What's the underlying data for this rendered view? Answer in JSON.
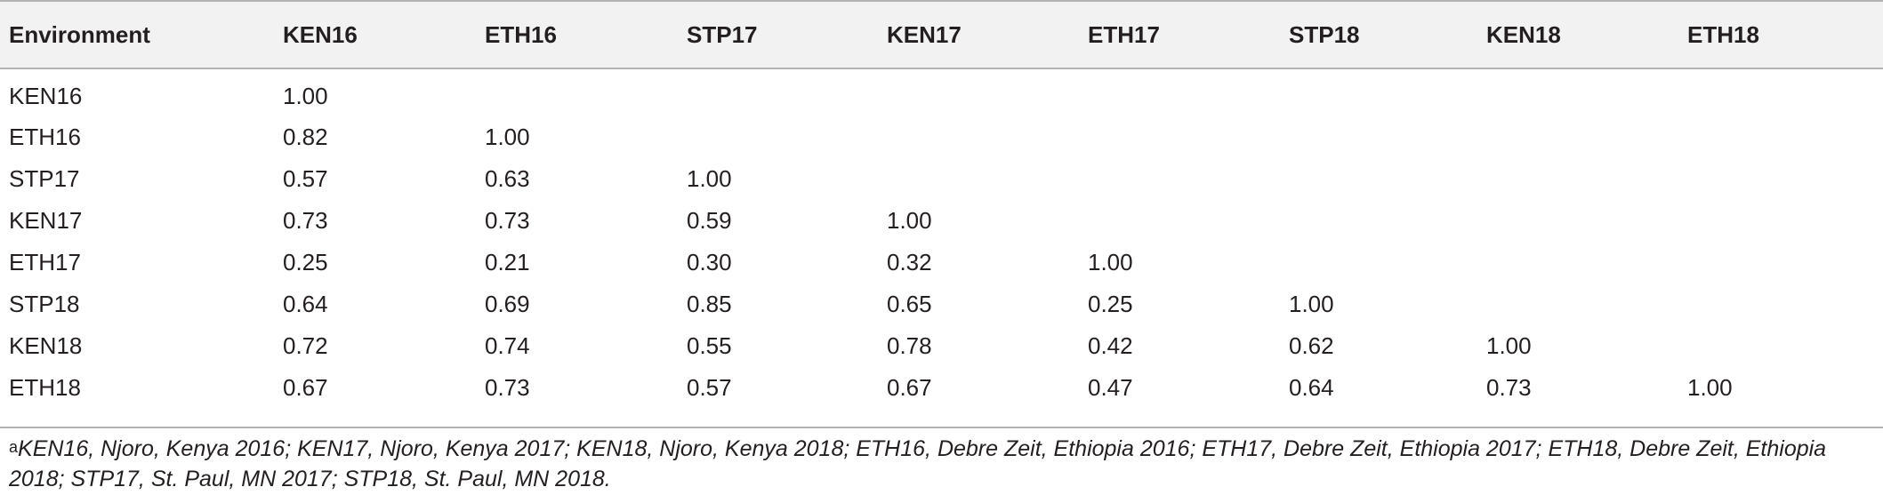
{
  "table": {
    "headers": [
      "Environment",
      "KEN16",
      "ETH16",
      "STP17",
      "KEN17",
      "ETH17",
      "STP18",
      "KEN18",
      "ETH18"
    ],
    "rows": [
      [
        "KEN16",
        "1.00",
        "",
        "",
        "",
        "",
        "",
        "",
        ""
      ],
      [
        "ETH16",
        "0.82",
        "1.00",
        "",
        "",
        "",
        "",
        "",
        ""
      ],
      [
        "STP17",
        "0.57",
        "0.63",
        "1.00",
        "",
        "",
        "",
        "",
        ""
      ],
      [
        "KEN17",
        "0.73",
        "0.73",
        "0.59",
        "1.00",
        "",
        "",
        "",
        ""
      ],
      [
        "ETH17",
        "0.25",
        "0.21",
        "0.30",
        "0.32",
        "1.00",
        "",
        "",
        ""
      ],
      [
        "STP18",
        "0.64",
        "0.69",
        "0.85",
        "0.65",
        "0.25",
        "1.00",
        "",
        ""
      ],
      [
        "KEN18",
        "0.72",
        "0.74",
        "0.55",
        "0.78",
        "0.42",
        "0.62",
        "1.00",
        ""
      ],
      [
        "ETH18",
        "0.67",
        "0.73",
        "0.57",
        "0.67",
        "0.47",
        "0.64",
        "0.73",
        "1.00"
      ]
    ]
  },
  "footnote": {
    "marker": "a",
    "text": "KEN16, Njoro, Kenya 2016; KEN17, Njoro, Kenya 2017; KEN18, Njoro, Kenya 2018; ETH16, Debre Zeit, Ethiopia 2016; ETH17, Debre Zeit, Ethiopia 2017; ETH18, Debre Zeit, Ethiopia 2018; STP17, St. Paul, MN 2017; STP18, St. Paul, MN 2018."
  }
}
